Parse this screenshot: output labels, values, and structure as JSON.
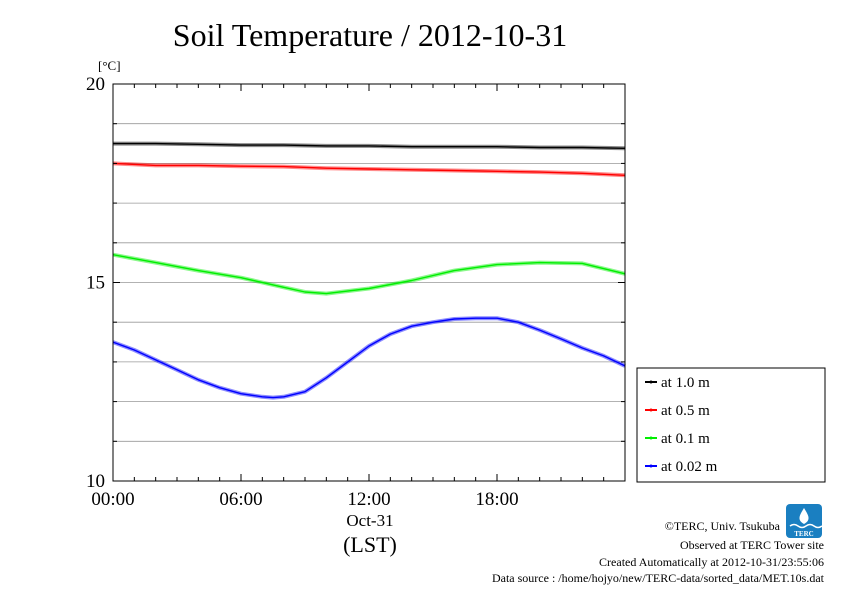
{
  "chart_data": {
    "type": "line",
    "title": "Soil Temperature / 2012-10-31",
    "ylabel_unit": "[°C]",
    "xlabel": "(LST)",
    "date_label": "Oct-31",
    "xlim": [
      0,
      24
    ],
    "ylim": [
      10,
      20
    ],
    "yticks": [
      10,
      15,
      20
    ],
    "xticks": [
      {
        "value": 0,
        "label": "00:00"
      },
      {
        "value": 6,
        "label": "06:00"
      },
      {
        "value": 12,
        "label": "12:00"
      },
      {
        "value": 18,
        "label": "18:00"
      }
    ],
    "grid": true,
    "legend_position": "right",
    "series": [
      {
        "name": "at 1.0 m",
        "color": "#000000",
        "x": [
          0,
          2,
          4,
          6,
          8,
          9,
          10,
          12,
          14,
          16,
          18,
          20,
          22,
          24
        ],
        "values": [
          18.5,
          18.5,
          18.48,
          18.46,
          18.46,
          18.45,
          18.44,
          18.44,
          18.42,
          18.42,
          18.42,
          18.4,
          18.4,
          18.38
        ]
      },
      {
        "name": "at 0.5 m",
        "color": "#ff0000",
        "x": [
          0,
          2,
          4,
          6,
          8,
          10,
          12,
          14,
          16,
          18,
          20,
          22,
          24
        ],
        "values": [
          18.0,
          17.95,
          17.95,
          17.93,
          17.92,
          17.88,
          17.86,
          17.84,
          17.82,
          17.8,
          17.78,
          17.75,
          17.7
        ]
      },
      {
        "name": "at 0.1 m",
        "color": "#00ee00",
        "x": [
          0,
          2,
          4,
          6,
          8,
          9,
          10,
          12,
          14,
          16,
          18,
          20,
          22,
          24
        ],
        "values": [
          15.7,
          15.5,
          15.3,
          15.12,
          14.88,
          14.76,
          14.72,
          14.85,
          15.05,
          15.3,
          15.45,
          15.5,
          15.48,
          15.22
        ]
      },
      {
        "name": "at 0.02 m",
        "color": "#0000ff",
        "x": [
          0,
          1,
          2,
          3,
          4,
          5,
          6,
          7,
          7.5,
          8,
          9,
          10,
          11,
          12,
          13,
          14,
          15,
          16,
          17,
          18,
          19,
          20,
          21,
          22,
          23,
          24
        ],
        "values": [
          13.5,
          13.3,
          13.05,
          12.8,
          12.55,
          12.35,
          12.2,
          12.12,
          12.1,
          12.12,
          12.25,
          12.6,
          13.0,
          13.4,
          13.7,
          13.9,
          14.0,
          14.08,
          14.1,
          14.1,
          14.0,
          13.8,
          13.58,
          13.35,
          13.15,
          12.9
        ]
      }
    ]
  },
  "footer": {
    "copyright": "©TERC, Univ. Tsukuba",
    "observed": "Observed at TERC Tower site",
    "created": "Created Automatically at 2012-10-31/23:55:06",
    "source": "Data source : /home/hojyo/new/TERC-data/sorted_data/MET.10s.dat"
  },
  "logo": {
    "text": "TERC",
    "color": "#1a7fc1"
  }
}
